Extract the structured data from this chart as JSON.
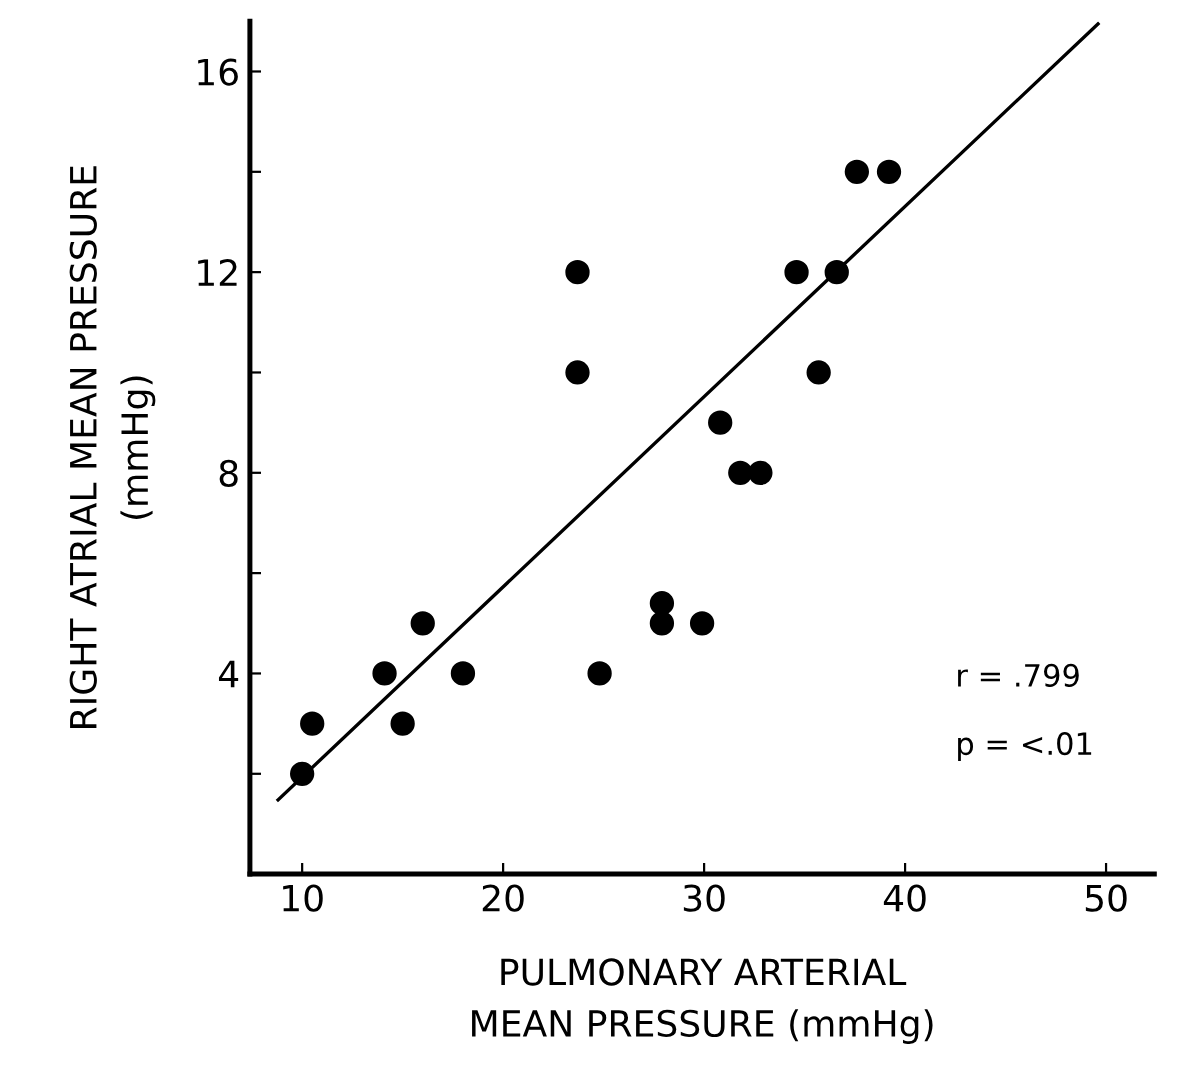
{
  "chart_data": {
    "type": "scatter",
    "xlabel": "PULMONARY ARTERIAL\nMEAN PRESSURE (mmHg)",
    "ylabel": "RIGHT ATRIAL MEAN PRESSURE\n(mmHg)",
    "xlim": [
      7.4,
      52.4
    ],
    "ylim": [
      0,
      17
    ],
    "xticks": [
      10,
      20,
      30,
      40,
      50
    ],
    "yticks": [
      {
        "value": 2,
        "label": null
      },
      4,
      {
        "value": 6,
        "label": null
      },
      8,
      {
        "value": 10,
        "label": null
      },
      12,
      {
        "value": 14,
        "label": null
      },
      16
    ],
    "grid": false,
    "legend": false,
    "marker": "circle",
    "annotations": [
      "r = .799",
      "p = <.01"
    ],
    "series": [
      {
        "color": "#000000",
        "x": [
          10,
          10.5,
          14.1,
          15,
          16,
          18,
          23.7,
          23.7,
          24.8,
          27.9,
          27.9,
          29.9,
          30.8,
          31.8,
          32.8,
          34.6,
          36.6,
          35.7,
          37.6,
          39.2
        ],
        "values": [
          2,
          3,
          4,
          3,
          5,
          4,
          12,
          10,
          4,
          5.4,
          5,
          5,
          9,
          8,
          8,
          12,
          12,
          10,
          14,
          14
        ]
      },
      {
        "type": "line",
        "color": "#000000",
        "line_style": "solid",
        "marker": "none",
        "x": [
          8.8,
          49.6
        ],
        "values": [
          1.48,
          16.95
        ]
      }
    ]
  }
}
